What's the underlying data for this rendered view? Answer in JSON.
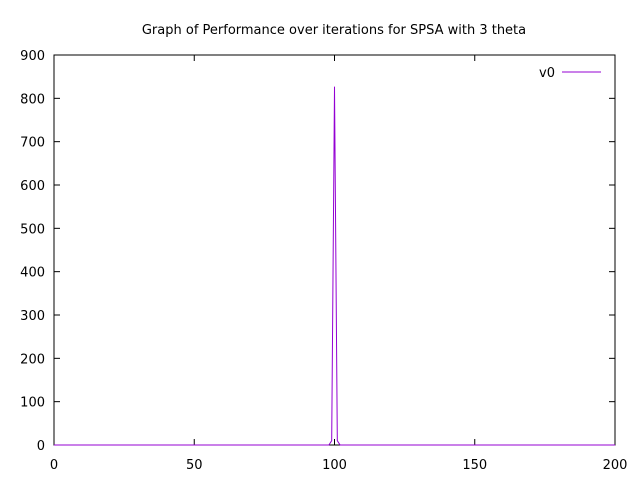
{
  "chart_data": {
    "type": "line",
    "title": "Graph of Performance over iterations for SPSA with 3 theta",
    "xlabel": "",
    "ylabel": "",
    "xlim": [
      0,
      200
    ],
    "ylim": [
      0,
      900
    ],
    "x_ticks": [
      0,
      50,
      100,
      150,
      200
    ],
    "y_ticks": [
      0,
      100,
      200,
      300,
      400,
      500,
      600,
      700,
      800,
      900
    ],
    "grid": false,
    "legend_position": "top-right",
    "series": [
      {
        "name": "v0",
        "color": "#9400d3",
        "points": [
          [
            0,
            0
          ],
          [
            98,
            0
          ],
          [
            99,
            10
          ],
          [
            100,
            827
          ],
          [
            101,
            10
          ],
          [
            102,
            0
          ],
          [
            200,
            0
          ]
        ]
      }
    ]
  }
}
